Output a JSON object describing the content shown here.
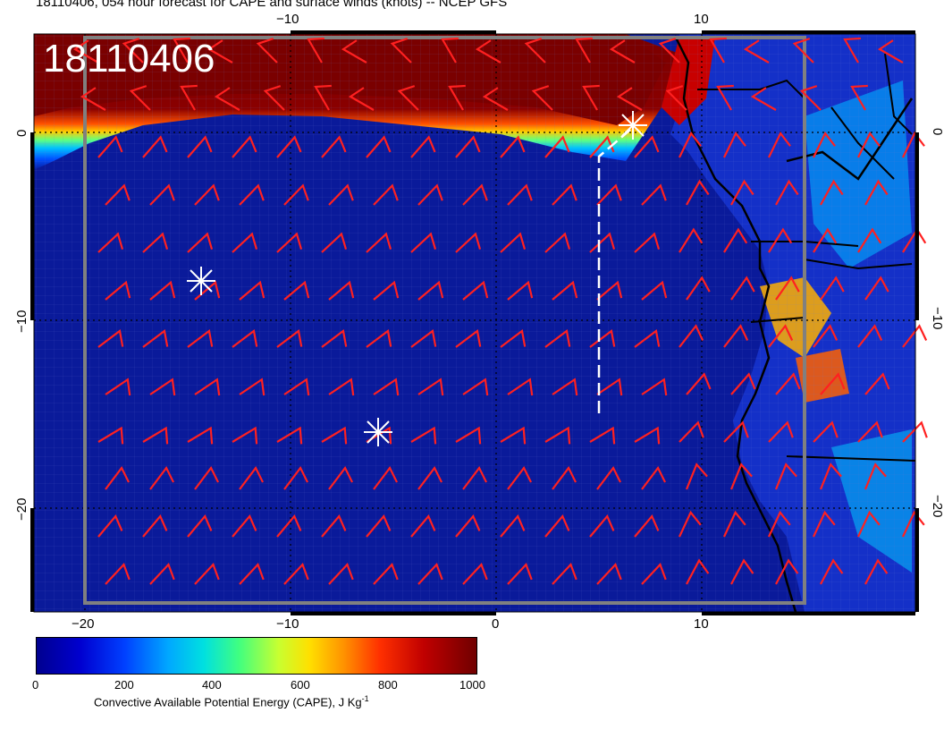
{
  "title": "18110406, 054 hour forecast for CAPE and surface winds (knots) -- NCEP GFS",
  "map": {
    "date_code": "18110406",
    "x_ticks": [
      "−20",
      "−10",
      "0",
      "10"
    ],
    "y_ticks": [
      "0",
      "−10",
      "−20"
    ],
    "top_ticks": [
      "−10",
      "10"
    ],
    "colors": {
      "ocean": "#0a1a9a",
      "high_cape": "#7a0000",
      "wind_barb": "#ff2020",
      "coastline": "#000000",
      "marker": "#ffffff"
    },
    "markers": [
      "asterisk-marker",
      "asterisk-marker",
      "asterisk-marker"
    ]
  },
  "colorbar": {
    "ticks": [
      "0",
      "200",
      "400",
      "600",
      "800",
      "1000"
    ],
    "caption": "Convective Available Potential Energy (CAPE), J Kg",
    "caption_sup": "-1",
    "range": [
      0,
      1000
    ]
  }
}
